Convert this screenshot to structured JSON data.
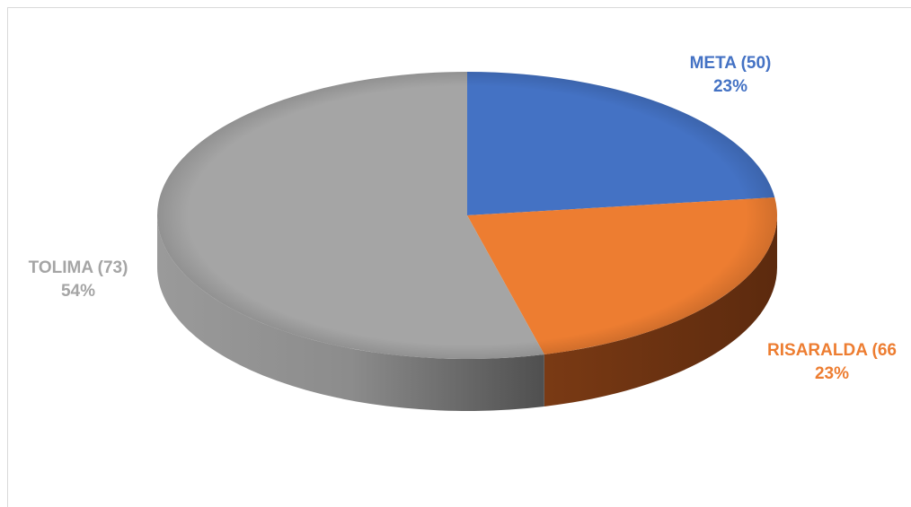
{
  "chart_data": {
    "type": "pie",
    "style": "3d",
    "categories": [
      "META (50)",
      "RISARALDA (66",
      "TOLIMA (73)"
    ],
    "values": [
      23,
      23,
      54
    ],
    "value_unit": "%",
    "colors": [
      "#4472C4",
      "#ED7D31",
      "#A5A5A5"
    ],
    "data_labels": [
      {
        "name": "META (50)",
        "percent": "23%",
        "color": "#4472C4"
      },
      {
        "name": "RISARALDA (66",
        "percent": "23%",
        "color": "#ED7D31"
      },
      {
        "name": "TOLIMA (73)",
        "percent": "54%",
        "color": "#A5A5A5"
      }
    ],
    "title": "",
    "legend": "none"
  }
}
